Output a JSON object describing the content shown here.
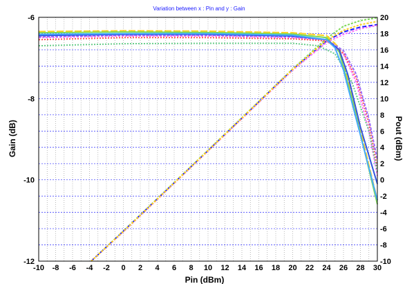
{
  "chart_data": {
    "type": "line",
    "title": "Variation between  x : Pin and y : Gain",
    "xlabel": "Pin (dBm)",
    "ylabel": "Gain (dB)",
    "y2label": "Pout (dBm)",
    "xlim": [
      -10,
      30
    ],
    "ylim": [
      -12,
      -6
    ],
    "y2lim": [
      -10,
      20
    ],
    "xticks": [
      -10,
      -8,
      -6,
      -4,
      -2,
      0,
      2,
      4,
      6,
      8,
      10,
      12,
      14,
      16,
      18,
      20,
      22,
      24,
      26,
      28,
      30
    ],
    "yticks": [
      -12,
      -10,
      -8,
      -6
    ],
    "y2ticks": [
      -10,
      -8,
      -6,
      -4,
      -2,
      0,
      2,
      4,
      6,
      8,
      10,
      12,
      14,
      16,
      18,
      20
    ],
    "grid": true,
    "colors": {
      "vgrid": "#9a9a9a",
      "hgrid": "#2b2bff",
      "title": "#1a1aff"
    },
    "gain_series": [
      {
        "color": "#ffd21f",
        "dash": "10,3",
        "points": [
          [
            -10,
            -6.35
          ],
          [
            0,
            -6.33
          ],
          [
            10,
            -6.34
          ],
          [
            20,
            -6.38
          ],
          [
            24,
            -6.45
          ],
          [
            25.5,
            -6.75
          ],
          [
            27,
            -7.9
          ],
          [
            28.5,
            -9.2
          ],
          [
            30,
            -10.5
          ]
        ]
      },
      {
        "color": "#7ed957",
        "dash": "",
        "points": [
          [
            -10,
            -6.38
          ],
          [
            0,
            -6.36
          ],
          [
            10,
            -6.37
          ],
          [
            20,
            -6.41
          ],
          [
            24,
            -6.5
          ],
          [
            25.5,
            -6.85
          ],
          [
            27,
            -8.0
          ],
          [
            28.5,
            -9.3
          ],
          [
            30,
            -10.6
          ]
        ]
      },
      {
        "color": "#ff6fff",
        "dash": "3,2",
        "points": [
          [
            -10,
            -6.5
          ],
          [
            0,
            -6.46
          ],
          [
            10,
            -6.46
          ],
          [
            20,
            -6.5
          ],
          [
            24,
            -6.56
          ],
          [
            26,
            -6.9
          ],
          [
            27.5,
            -7.6
          ],
          [
            29,
            -8.8
          ],
          [
            30,
            -9.9
          ]
        ]
      },
      {
        "color": "#ff5050",
        "dash": "2,2",
        "points": [
          [
            -10,
            -6.55
          ],
          [
            0,
            -6.5
          ],
          [
            10,
            -6.5
          ],
          [
            20,
            -6.53
          ],
          [
            24,
            -6.58
          ],
          [
            26,
            -6.88
          ],
          [
            27.5,
            -7.5
          ],
          [
            29,
            -8.6
          ],
          [
            30,
            -9.7
          ]
        ]
      },
      {
        "color": "#9b6bff",
        "dash": "4,2",
        "points": [
          [
            -10,
            -6.48
          ],
          [
            0,
            -6.44
          ],
          [
            10,
            -6.44
          ],
          [
            20,
            -6.48
          ],
          [
            24,
            -6.55
          ],
          [
            26,
            -6.82
          ],
          [
            27.5,
            -7.4
          ],
          [
            29,
            -8.5
          ],
          [
            30,
            -9.5
          ]
        ]
      },
      {
        "color": "#66cc88",
        "dash": "2,2",
        "points": [
          [
            -10,
            -6.7
          ],
          [
            0,
            -6.65
          ],
          [
            10,
            -6.64
          ],
          [
            20,
            -6.64
          ],
          [
            23,
            -6.7
          ],
          [
            25,
            -6.9
          ],
          [
            27,
            -7.6
          ],
          [
            29,
            -8.8
          ],
          [
            30,
            -9.8
          ]
        ]
      },
      {
        "color": "#3355dd",
        "dash": "",
        "points": [
          [
            -10,
            -6.45
          ],
          [
            0,
            -6.42
          ],
          [
            10,
            -6.42
          ],
          [
            20,
            -6.46
          ],
          [
            24,
            -6.55
          ],
          [
            25.5,
            -6.8
          ],
          [
            26.5,
            -7.4
          ],
          [
            28,
            -8.7
          ],
          [
            30,
            -10.1
          ]
        ]
      },
      {
        "color": "#44aaff",
        "dash": "",
        "points": [
          [
            -10,
            -6.42
          ],
          [
            0,
            -6.4
          ],
          [
            10,
            -6.4
          ],
          [
            20,
            -6.44
          ],
          [
            24,
            -6.55
          ],
          [
            25,
            -6.75
          ],
          [
            26,
            -7.3
          ],
          [
            28,
            -8.9
          ],
          [
            30,
            -10.5
          ]
        ]
      }
    ],
    "pout_series": [
      {
        "color": "#1a1aff",
        "dash": "6,3",
        "points": [
          [
            -3.8,
            -10
          ],
          [
            0,
            -6.3
          ],
          [
            10,
            3.6
          ],
          [
            20,
            13.6
          ],
          [
            24,
            17.1
          ],
          [
            26,
            18.2
          ],
          [
            28,
            18.8
          ],
          [
            30,
            19.1
          ]
        ]
      },
      {
        "color": "#7ed957",
        "dash": "3,2",
        "points": [
          [
            -3.8,
            -10
          ],
          [
            0,
            -6.3
          ],
          [
            10,
            3.65
          ],
          [
            20,
            13.65
          ],
          [
            24,
            17.4
          ],
          [
            26,
            18.9
          ],
          [
            28,
            19.6
          ],
          [
            30,
            19.95
          ]
        ]
      },
      {
        "color": "#ff6fff",
        "dash": "3,2",
        "points": [
          [
            -3.8,
            -10
          ],
          [
            0,
            -6.4
          ],
          [
            10,
            3.55
          ],
          [
            20,
            13.5
          ],
          [
            24,
            16.9
          ],
          [
            26,
            17.9
          ],
          [
            28,
            18.6
          ],
          [
            30,
            19.0
          ]
        ]
      },
      {
        "color": "#ffd21f",
        "dash": "3,2",
        "points": [
          [
            -3.8,
            -10
          ],
          [
            0,
            -6.35
          ],
          [
            10,
            3.6
          ],
          [
            20,
            13.6
          ],
          [
            24,
            17.2
          ],
          [
            26,
            18.4
          ],
          [
            28,
            19.1
          ],
          [
            30,
            19.5
          ]
        ]
      }
    ]
  }
}
